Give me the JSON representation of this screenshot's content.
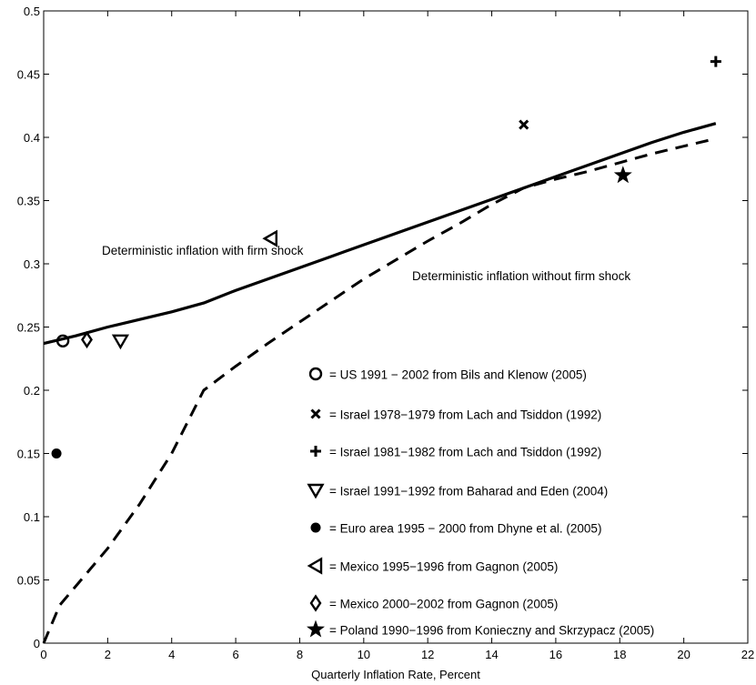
{
  "chart_data": {
    "type": "line",
    "xlabel": "Quarterly Inflation Rate, Percent",
    "ylabel": "",
    "xlim": [
      0,
      22
    ],
    "ylim": [
      0,
      0.5
    ],
    "xticks": [
      0,
      2,
      4,
      6,
      8,
      10,
      12,
      14,
      16,
      18,
      20,
      22
    ],
    "yticks": [
      0,
      0.05,
      0.1,
      0.15,
      0.2,
      0.25,
      0.3,
      0.35,
      0.4,
      0.45,
      0.5
    ],
    "xtick_labels": [
      "0",
      "2",
      "4",
      "6",
      "8",
      "10",
      "12",
      "14",
      "16",
      "18",
      "20",
      "22"
    ],
    "ytick_labels": [
      "0",
      "0.05",
      "0.1",
      "0.15",
      "0.2",
      "0.25",
      "0.3",
      "0.35",
      "0.4",
      "0.45",
      "0.5"
    ],
    "grid": false,
    "series": [
      {
        "label": "Deterministic inflation with firm shock",
        "style": "solid",
        "x": [
          0,
          1,
          2,
          3,
          4,
          5,
          6,
          7,
          8,
          9,
          10,
          11,
          12,
          13,
          14,
          15,
          16,
          17,
          18,
          19,
          20,
          21
        ],
        "y": [
          0.237,
          0.243,
          0.25,
          0.256,
          0.262,
          0.269,
          0.279,
          0.288,
          0.297,
          0.306,
          0.315,
          0.324,
          0.333,
          0.342,
          0.351,
          0.36,
          0.369,
          0.378,
          0.387,
          0.396,
          0.404,
          0.411
        ]
      },
      {
        "label": "Deterministic inflation without firm shock",
        "style": "dashed",
        "x": [
          0,
          0.5,
          1,
          2,
          3,
          4,
          5,
          6,
          7,
          8,
          9,
          10,
          11,
          12,
          13,
          14,
          15,
          16,
          17,
          18,
          19,
          20,
          21
        ],
        "y": [
          0,
          0.03,
          0.045,
          0.075,
          0.11,
          0.15,
          0.2,
          0.219,
          0.237,
          0.254,
          0.271,
          0.288,
          0.303,
          0.318,
          0.332,
          0.347,
          0.36,
          0.367,
          0.373,
          0.38,
          0.387,
          0.393,
          0.399
        ]
      }
    ],
    "line_labels": [
      {
        "text": "Deterministic inflation with firm shock",
        "x": 0.0,
        "y": 0.0
      },
      {
        "text": "Deterministic inflation without firm shock",
        "x": 0.0,
        "y": 0.0
      }
    ],
    "points": [
      {
        "marker": "circle-open",
        "x": 0.6,
        "y": 0.239,
        "label": "= US 1991 − 2002 from Bils and Klenow (2005)"
      },
      {
        "marker": "x",
        "x": 15.0,
        "y": 0.41,
        "label": "= Israel 1978−1979 from Lach and Tsiddon (1992)"
      },
      {
        "marker": "plus",
        "x": 21.0,
        "y": 0.46,
        "label": "= Israel 1981−1982 from Lach and Tsiddon (1992)"
      },
      {
        "marker": "triangle-down",
        "x": 2.4,
        "y": 0.239,
        "label": "= Israel 1991−1992 from Baharad and Eden (2004)"
      },
      {
        "marker": "circle-filled",
        "x": 0.4,
        "y": 0.15,
        "label": "= Euro area 1995 − 2000 from Dhyne et al. (2005)"
      },
      {
        "marker": "triangle-left",
        "x": 7.1,
        "y": 0.32,
        "label": "= Mexico 1995−1996 from Gagnon (2005)"
      },
      {
        "marker": "diamond",
        "x": 1.35,
        "y": 0.24,
        "label": "= Mexico 2000−2002 from Gagnon (2005)"
      },
      {
        "marker": "star",
        "x": 18.1,
        "y": 0.37,
        "label": "= Poland 1990−1996 from Konieczny and Skrzypacz (2005)"
      }
    ],
    "legend_position": "lower-right"
  }
}
